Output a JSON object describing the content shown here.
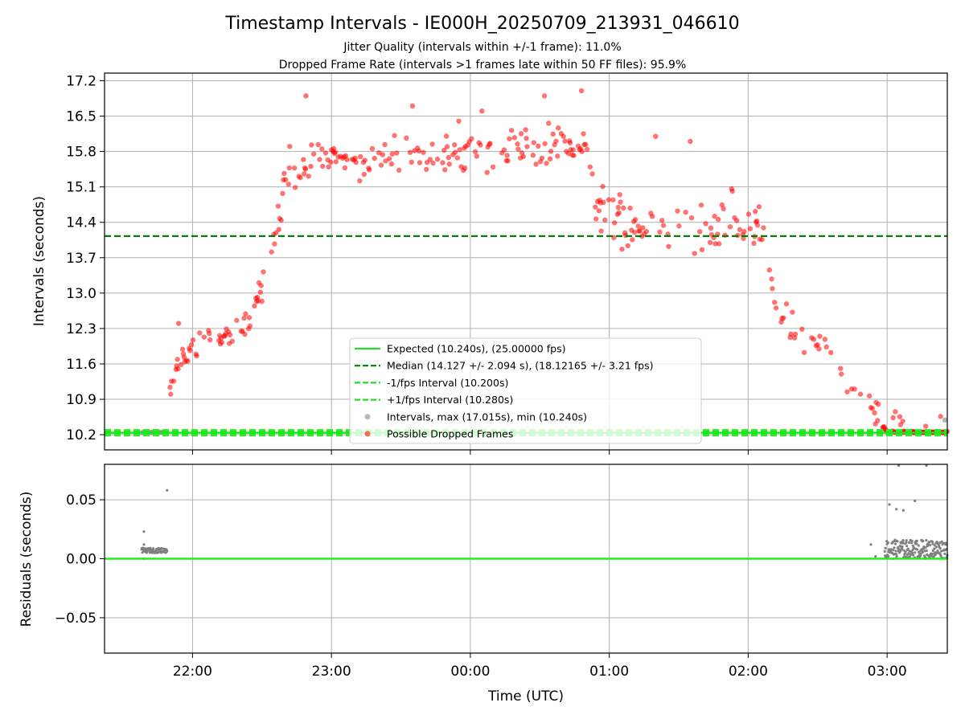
{
  "chart_data": [
    {
      "type": "scatter",
      "title": "Timestamp Intervals - IE000H_20250709_213931_046610",
      "subtitle_lines": [
        "Jitter Quality (intervals within +/-1 frame): 11.0%",
        "Dropped Frame Rate (intervals >1 frames late within 50 FF files): 95.9%"
      ],
      "xlabel": "",
      "ylabel": "Intervals (seconds)",
      "xlim": [
        "21:22",
        "03:26"
      ],
      "ylim": [
        9.9,
        17.35
      ],
      "x_ticks": [
        "22:00",
        "23:00",
        "00:00",
        "01:00",
        "02:00",
        "03:00"
      ],
      "y_ticks": [
        "10.2",
        "10.9",
        "11.6",
        "12.3",
        "13.0",
        "13.7",
        "14.4",
        "15.1",
        "15.8",
        "16.5",
        "17.2"
      ],
      "grid": true,
      "legend_position": "lower-center",
      "lines": {
        "expected": 10.24,
        "median": 14.127,
        "minus_fps": 10.2,
        "plus_fps": 10.28
      },
      "legend": [
        {
          "label": "Expected (10.240s), (25.00000 fps)",
          "kind": "line",
          "color": "#22dd22",
          "dash": "solid"
        },
        {
          "label": "Median (14.127 +/- 2.094 s), (18.12165 +/- 3.21 fps)",
          "kind": "line",
          "color": "#008000",
          "dash": "dashed"
        },
        {
          "label": "-1/fps Interval (10.200s)",
          "kind": "line",
          "color": "#22dd22",
          "dash": "dashed"
        },
        {
          "label": "+1/fps Interval (10.280s)",
          "kind": "line",
          "color": "#22dd22",
          "dash": "dashed"
        },
        {
          "label": "Intervals, max (17.015s), min (10.240s)",
          "kind": "marker",
          "color": "#808080"
        },
        {
          "label": "Possible Dropped Frames",
          "kind": "marker",
          "color": "#ff0000"
        }
      ],
      "series": [
        {
          "name": "Possible Dropped Frames",
          "color": "#ff0000",
          "profile": [
            [
              "21:49",
              10.8
            ],
            [
              "21:53",
              11.5
            ],
            [
              "21:58",
              11.9
            ],
            [
              "22:05",
              12.0
            ],
            [
              "22:15",
              12.2
            ],
            [
              "22:22",
              12.3
            ],
            [
              "22:28",
              12.8
            ],
            [
              "22:32",
              13.3
            ],
            [
              "22:36",
              14.2
            ],
            [
              "22:40",
              15.2
            ],
            [
              "22:45",
              15.6
            ],
            [
              "23:00",
              15.6
            ],
            [
              "23:30",
              15.7
            ],
            [
              "00:00",
              15.8
            ],
            [
              "00:30",
              15.9
            ],
            [
              "00:50",
              15.9
            ],
            [
              "00:54",
              14.9
            ],
            [
              "01:00",
              14.5
            ],
            [
              "01:10",
              14.3
            ],
            [
              "01:30",
              14.5
            ],
            [
              "02:05",
              14.4
            ],
            [
              "02:08",
              13.8
            ],
            [
              "02:13",
              12.6
            ],
            [
              "02:20",
              12.3
            ],
            [
              "02:35",
              11.8
            ],
            [
              "02:45",
              11.1
            ],
            [
              "02:55",
              10.6
            ],
            [
              "03:00",
              10.24
            ],
            [
              "03:26",
              10.24
            ]
          ],
          "outliers": [
            [
              "22:49",
              16.9
            ],
            [
              "00:48",
              17.0
            ],
            [
              "00:32",
              16.9
            ],
            [
              "01:35",
              16.0
            ],
            [
              "01:20",
              16.1
            ],
            [
              "23:35",
              16.7
            ],
            [
              "00:05",
              16.6
            ],
            [
              "21:54",
              12.4
            ],
            [
              "23:55",
              16.4
            ],
            [
              "22:42",
              15.9
            ]
          ]
        }
      ]
    },
    {
      "type": "scatter",
      "title": "",
      "xlabel": "Time (UTC)",
      "ylabel": "Residuals (seconds)",
      "xlim": [
        "21:22",
        "03:26"
      ],
      "ylim": [
        -0.08,
        0.08
      ],
      "x_ticks": [
        "22:00",
        "23:00",
        "00:00",
        "01:00",
        "02:00",
        "03:00"
      ],
      "y_ticks": [
        "0.05",
        "0.00",
        "−0.05"
      ],
      "grid": true,
      "zero_line": 0.0,
      "series": [
        {
          "name": "Residuals",
          "color": "#808080",
          "clusters": [
            {
              "start": "21:38",
              "end": "21:49",
              "low": 0.005,
              "high": 0.009
            },
            {
              "start": "02:59",
              "end": "03:26",
              "low": 0.0,
              "high": 0.016
            }
          ],
          "outliers": [
            [
              "21:39",
              0.023
            ],
            [
              "21:39",
              0.012
            ],
            [
              "21:39",
              0.0
            ],
            [
              "21:49",
              0.058
            ],
            [
              "03:01",
              0.046
            ],
            [
              "03:04",
              0.042
            ],
            [
              "03:07",
              0.041
            ],
            [
              "03:12",
              0.049
            ],
            [
              "02:53",
              0.012
            ],
            [
              "02:55",
              0.002
            ],
            [
              "03:05",
              0.079
            ],
            [
              "03:17",
              0.079
            ],
            [
              "03:26",
              0.003
            ]
          ]
        }
      ]
    }
  ]
}
